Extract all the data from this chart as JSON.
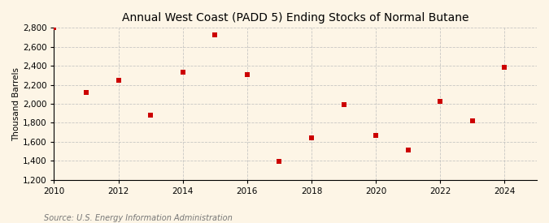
{
  "title": "Annual West Coast (PADD 5) Ending Stocks of Normal Butane",
  "ylabel": "Thousand Barrels",
  "source": "Source: U.S. Energy Information Administration",
  "background_color": "#fdf5e6",
  "plot_background_color": "#fdf5e6",
  "marker_color": "#cc0000",
  "marker": "s",
  "marker_size": 4,
  "x_data": [
    2010,
    2011,
    2012,
    2013,
    2014,
    2015,
    2016,
    2017,
    2018,
    2019,
    2020,
    2021,
    2022,
    2023,
    2024
  ],
  "y_data": [
    2800,
    2120,
    2250,
    1880,
    2330,
    2730,
    2305,
    1395,
    1645,
    1990,
    1670,
    1515,
    2030,
    1820,
    2385
  ],
  "xlim": [
    2010,
    2025
  ],
  "ylim": [
    1200,
    2800
  ],
  "yticks": [
    1200,
    1400,
    1600,
    1800,
    2000,
    2200,
    2400,
    2600,
    2800
  ],
  "xticks": [
    2010,
    2012,
    2014,
    2016,
    2018,
    2020,
    2022,
    2024
  ],
  "grid_color": "#bbbbbb",
  "grid_linestyle": "--",
  "grid_linewidth": 0.6,
  "title_fontsize": 10,
  "title_fontweight": "normal",
  "label_fontsize": 7.5,
  "tick_fontsize": 7.5,
  "source_fontsize": 7,
  "source_color": "#777777"
}
